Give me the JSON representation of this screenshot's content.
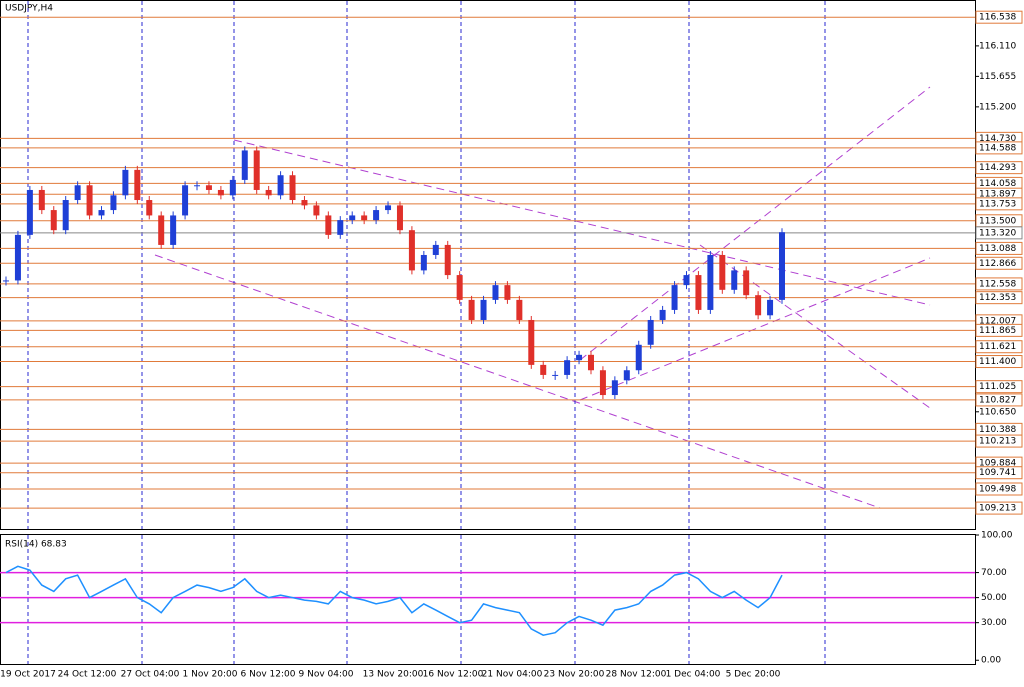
{
  "chart_data": [
    {
      "type": "candlestick",
      "title": "USDJPY,H4",
      "ylim": [
        109.11,
        116.72
      ],
      "yticks": [
        {
          "value": 116.11,
          "label": "116.110"
        },
        115.655,
        {
          "value": 115.2,
          "label": "115.200"
        },
        {
          "value": 110.65,
          "label": "110.650"
        }
      ],
      "levels": [
        116.538,
        {
          "value": 114.73,
          "label": "114.730"
        },
        114.588,
        114.293,
        114.058,
        113.897,
        113.753,
        {
          "value": 113.5,
          "label": "113.500"
        },
        113.088,
        112.866,
        112.558,
        112.353,
        112.007,
        111.865,
        111.621,
        {
          "value": 111.4,
          "label": "111.400"
        },
        111.025,
        110.827,
        110.388,
        110.213,
        109.884,
        109.741,
        109.498,
        109.213
      ],
      "current_price": {
        "value": 113.32,
        "label": "113.320"
      },
      "up_color": "#1f3fd6",
      "down_color": "#e0302a",
      "level_color": "#e07a3a",
      "categories": [
        "19 Oct 2017",
        "24 Oct 12:00",
        "27 Oct 04:00",
        "1 Nov 20:00",
        "6 Nov 12:00",
        "9 Nov 04:00",
        "13 Nov 20:00",
        "16 Nov 12:00",
        "21 Nov 04:00",
        "23 Nov 20:00",
        "28 Nov 12:00",
        "1 Dec 04:00",
        "5 Dec 20:00"
      ],
      "close": [
        112.61,
        113.29,
        113.96,
        113.66,
        113.36,
        113.81,
        114.03,
        113.58,
        113.66,
        113.88,
        114.26,
        113.81,
        113.58,
        113.14,
        113.58,
        114.03,
        114.03,
        113.96,
        113.88,
        114.11,
        114.55,
        113.96,
        113.88,
        114.18,
        113.81,
        113.73,
        113.58,
        113.29,
        113.51,
        113.58,
        113.51,
        113.66,
        113.73,
        113.36,
        112.76,
        112.99,
        113.14,
        112.69,
        112.32,
        112.02,
        112.32,
        112.54,
        112.32,
        112.02,
        111.35,
        111.2,
        111.2,
        111.42,
        111.5,
        111.27,
        110.9,
        111.12,
        111.27,
        111.65,
        112.02,
        112.17,
        112.54,
        112.69,
        112.17,
        112.99,
        112.47,
        112.76,
        112.39,
        112.09,
        112.32,
        113.33
      ]
    },
    {
      "type": "line",
      "title": "RSI(14) 68.83",
      "color": "#1e90ff",
      "level_color": "#e020e0",
      "ylim": [
        -3,
        100
      ],
      "levels": [
        70,
        50,
        30
      ],
      "yticks": [
        {
          "value": 100,
          "label": "100.00"
        },
        {
          "value": 70,
          "label": "70.00"
        },
        {
          "value": 50,
          "label": "50.00"
        },
        {
          "value": 30,
          "label": "30.00"
        },
        {
          "value": 0,
          "label": "0.00"
        }
      ],
      "values": [
        70,
        75,
        72,
        60,
        55,
        65,
        68,
        50,
        55,
        60,
        65,
        50,
        45,
        38,
        50,
        55,
        60,
        58,
        55,
        58,
        65,
        55,
        50,
        52,
        50,
        48,
        47,
        45,
        55,
        50,
        48,
        45,
        47,
        50,
        38,
        45,
        40,
        35,
        30,
        32,
        45,
        42,
        40,
        38,
        25,
        20,
        22,
        30,
        35,
        32,
        28,
        40,
        42,
        45,
        55,
        60,
        68,
        70,
        65,
        55,
        50,
        55,
        48,
        42,
        50,
        68
      ]
    }
  ]
}
